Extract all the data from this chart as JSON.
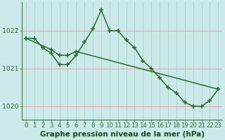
{
  "line1_x": [
    0,
    1,
    2,
    3,
    4,
    5,
    6,
    7,
    8,
    9,
    10,
    11,
    12,
    13,
    14,
    15,
    16,
    17,
    18,
    19,
    20,
    21,
    22,
    23
  ],
  "line1_y": [
    1021.8,
    1021.8,
    1021.55,
    1021.4,
    1021.1,
    1021.1,
    1021.35,
    1021.7,
    1022.05,
    1022.55,
    1022.0,
    1022.0,
    1021.75,
    1021.55,
    1021.2,
    1021.0,
    1020.75,
    1020.5,
    1020.35,
    1020.1,
    1020.0,
    1020.0,
    1020.15,
    1020.45
  ],
  "line2_x": [
    0,
    3,
    4,
    5,
    6,
    23
  ],
  "line2_y": [
    1021.8,
    1021.5,
    1021.35,
    1021.35,
    1021.45,
    1020.45
  ],
  "line_color": "#2d6a2d",
  "bg_color": "#cce9e9",
  "grid_color_h": "#e8a0a0",
  "grid_color_v": "#aad4d4",
  "xlabel": "Graphe pression niveau de la mer (hPa)",
  "xlabel_color": "#1a4a1a",
  "ylim": [
    1019.65,
    1022.75
  ],
  "xlim": [
    -0.5,
    23.5
  ],
  "yticks": [
    1020,
    1021,
    1022
  ],
  "xticks": [
    0,
    1,
    2,
    3,
    4,
    5,
    6,
    7,
    8,
    9,
    10,
    11,
    12,
    13,
    14,
    15,
    16,
    17,
    18,
    19,
    20,
    21,
    22,
    23
  ],
  "tick_fontsize": 6.2,
  "xlabel_fontsize": 7.5,
  "marker": "+",
  "markersize": 4,
  "linewidth": 1.1
}
